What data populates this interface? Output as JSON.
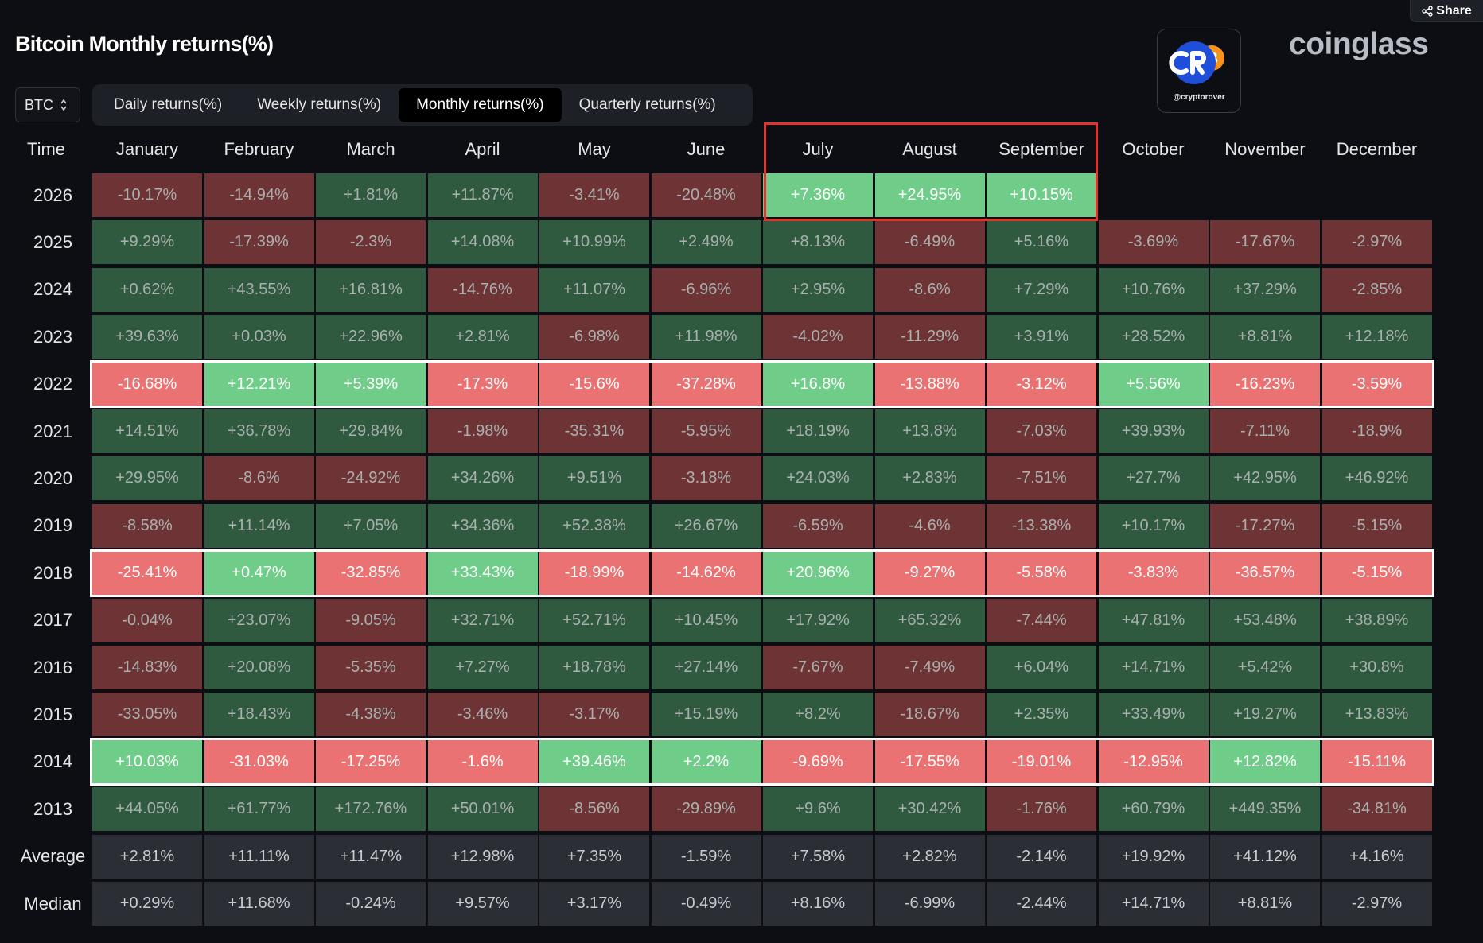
{
  "toolbar": {
    "share_label": "Share"
  },
  "header": {
    "title": "Bitcoin Monthly returns(%)"
  },
  "watermark": {
    "handle": "@cryptorover",
    "brand": "coinglass"
  },
  "coin_select": {
    "value": "BTC"
  },
  "tabs": [
    {
      "label": "Daily returns(%)",
      "active": false
    },
    {
      "label": "Weekly returns(%)",
      "active": false
    },
    {
      "label": "Monthly returns(%)",
      "active": true
    },
    {
      "label": "Quarterly returns(%)",
      "active": false
    }
  ],
  "table": {
    "time_label": "Time",
    "months": [
      "January",
      "February",
      "March",
      "April",
      "May",
      "June",
      "July",
      "August",
      "September",
      "October",
      "November",
      "December"
    ],
    "rows": [
      {
        "label": "2026",
        "values": [
          "-10.17%",
          "-14.94%",
          "+1.81%",
          "+11.87%",
          "-3.41%",
          "-20.48%",
          "+7.36%",
          "+24.95%",
          "+10.15%",
          "",
          "",
          ""
        ]
      },
      {
        "label": "2025",
        "values": [
          "+9.29%",
          "-17.39%",
          "-2.3%",
          "+14.08%",
          "+10.99%",
          "+2.49%",
          "+8.13%",
          "-6.49%",
          "+5.16%",
          "-3.69%",
          "-17.67%",
          "-2.97%"
        ]
      },
      {
        "label": "2024",
        "values": [
          "+0.62%",
          "+43.55%",
          "+16.81%",
          "-14.76%",
          "+11.07%",
          "-6.96%",
          "+2.95%",
          "-8.6%",
          "+7.29%",
          "+10.76%",
          "+37.29%",
          "-2.85%"
        ]
      },
      {
        "label": "2023",
        "values": [
          "+39.63%",
          "+0.03%",
          "+22.96%",
          "+2.81%",
          "-6.98%",
          "+11.98%",
          "-4.02%",
          "-11.29%",
          "+3.91%",
          "+28.52%",
          "+8.81%",
          "+12.18%"
        ]
      },
      {
        "label": "2022",
        "values": [
          "-16.68%",
          "+12.21%",
          "+5.39%",
          "-17.3%",
          "-15.6%",
          "-37.28%",
          "+16.8%",
          "-13.88%",
          "-3.12%",
          "+5.56%",
          "-16.23%",
          "-3.59%"
        ]
      },
      {
        "label": "2021",
        "values": [
          "+14.51%",
          "+36.78%",
          "+29.84%",
          "-1.98%",
          "-35.31%",
          "-5.95%",
          "+18.19%",
          "+13.8%",
          "-7.03%",
          "+39.93%",
          "-7.11%",
          "-18.9%"
        ]
      },
      {
        "label": "2020",
        "values": [
          "+29.95%",
          "-8.6%",
          "-24.92%",
          "+34.26%",
          "+9.51%",
          "-3.18%",
          "+24.03%",
          "+2.83%",
          "-7.51%",
          "+27.7%",
          "+42.95%",
          "+46.92%"
        ]
      },
      {
        "label": "2019",
        "values": [
          "-8.58%",
          "+11.14%",
          "+7.05%",
          "+34.36%",
          "+52.38%",
          "+26.67%",
          "-6.59%",
          "-4.6%",
          "-13.38%",
          "+10.17%",
          "-17.27%",
          "-5.15%"
        ]
      },
      {
        "label": "2018",
        "values": [
          "-25.41%",
          "+0.47%",
          "-32.85%",
          "+33.43%",
          "-18.99%",
          "-14.62%",
          "+20.96%",
          "-9.27%",
          "-5.58%",
          "-3.83%",
          "-36.57%",
          "-5.15%"
        ]
      },
      {
        "label": "2017",
        "values": [
          "-0.04%",
          "+23.07%",
          "-9.05%",
          "+32.71%",
          "+52.71%",
          "+10.45%",
          "+17.92%",
          "+65.32%",
          "-7.44%",
          "+47.81%",
          "+53.48%",
          "+38.89%"
        ]
      },
      {
        "label": "2016",
        "values": [
          "-14.83%",
          "+20.08%",
          "-5.35%",
          "+7.27%",
          "+18.78%",
          "+27.14%",
          "-7.67%",
          "-7.49%",
          "+6.04%",
          "+14.71%",
          "+5.42%",
          "+30.8%"
        ]
      },
      {
        "label": "2015",
        "values": [
          "-33.05%",
          "+18.43%",
          "-4.38%",
          "-3.46%",
          "-3.17%",
          "+15.19%",
          "+8.2%",
          "-18.67%",
          "+2.35%",
          "+33.49%",
          "+19.27%",
          "+13.83%"
        ]
      },
      {
        "label": "2014",
        "values": [
          "+10.03%",
          "-31.03%",
          "-17.25%",
          "-1.6%",
          "+39.46%",
          "+2.2%",
          "-9.69%",
          "-17.55%",
          "-19.01%",
          "-12.95%",
          "+12.82%",
          "-15.11%"
        ]
      },
      {
        "label": "2013",
        "values": [
          "+44.05%",
          "+61.77%",
          "+172.76%",
          "+50.01%",
          "-8.56%",
          "-29.89%",
          "+9.6%",
          "+30.42%",
          "-1.76%",
          "+60.79%",
          "+449.35%",
          "-34.81%"
        ]
      },
      {
        "label": "Average",
        "values": [
          "+2.81%",
          "+11.11%",
          "+11.47%",
          "+12.98%",
          "+7.35%",
          "-1.59%",
          "+7.58%",
          "+2.82%",
          "-2.14%",
          "+19.92%",
          "+41.12%",
          "+4.16%"
        ]
      },
      {
        "label": "Median",
        "values": [
          "+0.29%",
          "+11.68%",
          "-0.24%",
          "+9.57%",
          "+3.17%",
          "-0.49%",
          "+8.16%",
          "-6.99%",
          "-2.44%",
          "+14.71%",
          "+8.81%",
          "-2.97%"
        ]
      }
    ]
  },
  "highlights": {
    "rows_outlined": [
      "2022",
      "2018",
      "2014"
    ],
    "row_outline_color": "#ffffff",
    "cells_highlighted": {
      "row": "2026",
      "months": [
        "July",
        "August",
        "September"
      ]
    },
    "cell_outline_color": "#e0342c"
  },
  "colors": {
    "positive": "#2f5a3f",
    "negative": "#6e3335",
    "positive_bright": "#70cc89",
    "negative_bright": "#ea7272",
    "stat": "#2b2e35",
    "background": "#0d0e13"
  }
}
